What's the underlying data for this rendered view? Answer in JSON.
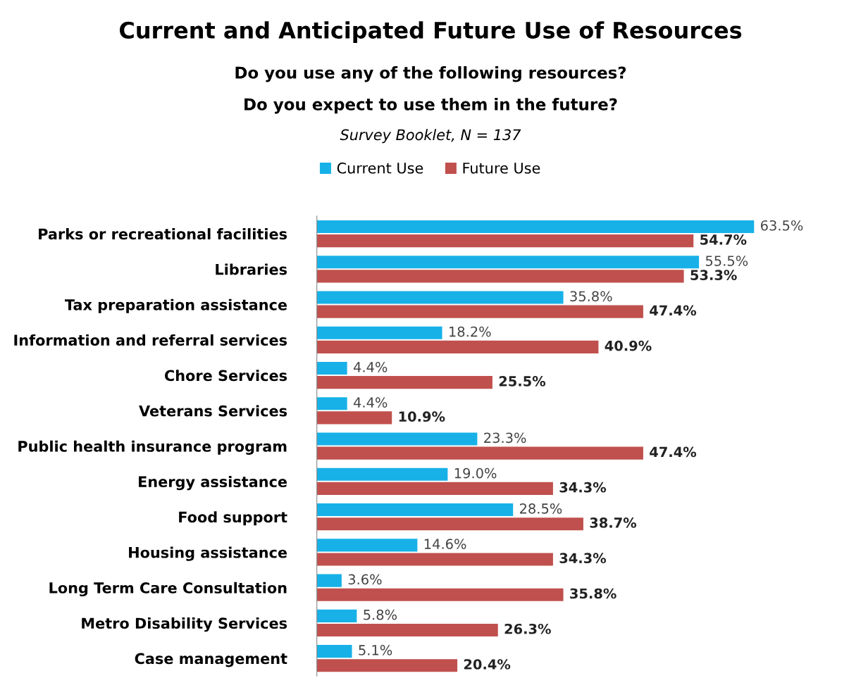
{
  "chart_data": {
    "type": "bar",
    "orientation": "horizontal",
    "title": "Current and Anticipated Future Use of Resources",
    "subtitle": "Do you use any of the following resources?\nDo you expect to use them in the future?",
    "annotations": [
      "Survey Booklet, N = 137"
    ],
    "categories": [
      "Parks or recreational facilities",
      "Libraries",
      "Tax preparation assistance",
      "Information and referral services",
      "Chore Services",
      "Veterans Services",
      "Public health insurance program",
      "Energy assistance",
      "Food support",
      "Housing assistance",
      "Long Term Care Consultation",
      "Metro Disability Services",
      "Case management"
    ],
    "series": [
      {
        "name": "Current Use",
        "color": "#17b1e8",
        "values": [
          63.5,
          55.5,
          35.8,
          18.2,
          4.4,
          4.4,
          23.3,
          19.0,
          28.5,
          14.6,
          3.6,
          5.8,
          5.1
        ],
        "value_labels": [
          "63.5%",
          "55.5%",
          "35.8%",
          "18.2%",
          "4.4%",
          "4.4%",
          "23.3%",
          "19.0%",
          "28.5%",
          "14.6%",
          "3.6%",
          "5.8%",
          "5.1%"
        ]
      },
      {
        "name": "Future Use",
        "color": "#c0504d",
        "values": [
          54.7,
          53.3,
          47.4,
          40.9,
          25.5,
          10.9,
          47.4,
          34.3,
          38.7,
          34.3,
          35.8,
          26.3,
          20.4
        ],
        "value_labels": [
          "54.7%",
          "53.3%",
          "47.4%",
          "40.9%",
          "25.5%",
          "10.9%",
          "47.4%",
          "34.3%",
          "38.7%",
          "34.3%",
          "35.8%",
          "26.3%",
          "20.4%"
        ]
      }
    ],
    "legend": "top",
    "grid": false
  }
}
